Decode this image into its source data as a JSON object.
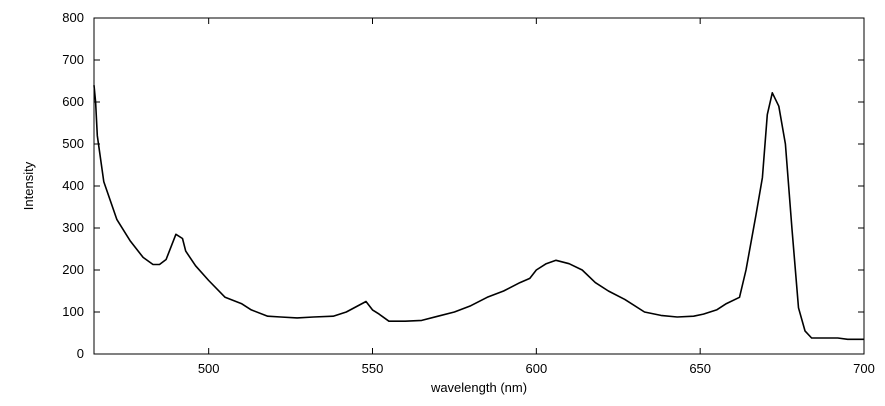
{
  "chart_data": {
    "type": "line",
    "title": "",
    "xlabel": "wavelength (nm)",
    "ylabel": "Intensity",
    "xlim": [
      465,
      700
    ],
    "ylim": [
      0,
      800
    ],
    "xticks": [
      500,
      550,
      600,
      650,
      700
    ],
    "yticks": [
      0,
      100,
      200,
      300,
      400,
      500,
      600,
      700,
      800
    ],
    "grid": false,
    "legend": "none",
    "line_color": "#000000",
    "series": [
      {
        "x": [
          465,
          465.5,
          466,
          468,
          472,
          476,
          480,
          483,
          485,
          487,
          490,
          492,
          493,
          496,
          500,
          505,
          510,
          513,
          518,
          522,
          527,
          532,
          538,
          542,
          548,
          550,
          552,
          555,
          560,
          565,
          570,
          575,
          580,
          585,
          590,
          595,
          598,
          600,
          603,
          606,
          610,
          614,
          618,
          622,
          627,
          633,
          638,
          643,
          648,
          651,
          655,
          658,
          662,
          664,
          667,
          669,
          670.5,
          672,
          674,
          676,
          678,
          680,
          682,
          684,
          688,
          692,
          695,
          700
        ],
        "y": [
          640,
          600,
          520,
          410,
          320,
          270,
          230,
          213,
          213,
          225,
          285,
          275,
          245,
          210,
          175,
          135,
          120,
          105,
          90,
          88,
          86,
          88,
          90,
          100,
          125,
          105,
          95,
          78,
          78,
          80,
          90,
          100,
          115,
          135,
          150,
          170,
          180,
          200,
          215,
          223,
          215,
          200,
          170,
          150,
          130,
          100,
          92,
          88,
          90,
          95,
          105,
          120,
          135,
          200,
          330,
          420,
          570,
          622,
          590,
          500,
          300,
          110,
          55,
          38,
          38,
          38,
          35,
          35
        ]
      }
    ]
  }
}
